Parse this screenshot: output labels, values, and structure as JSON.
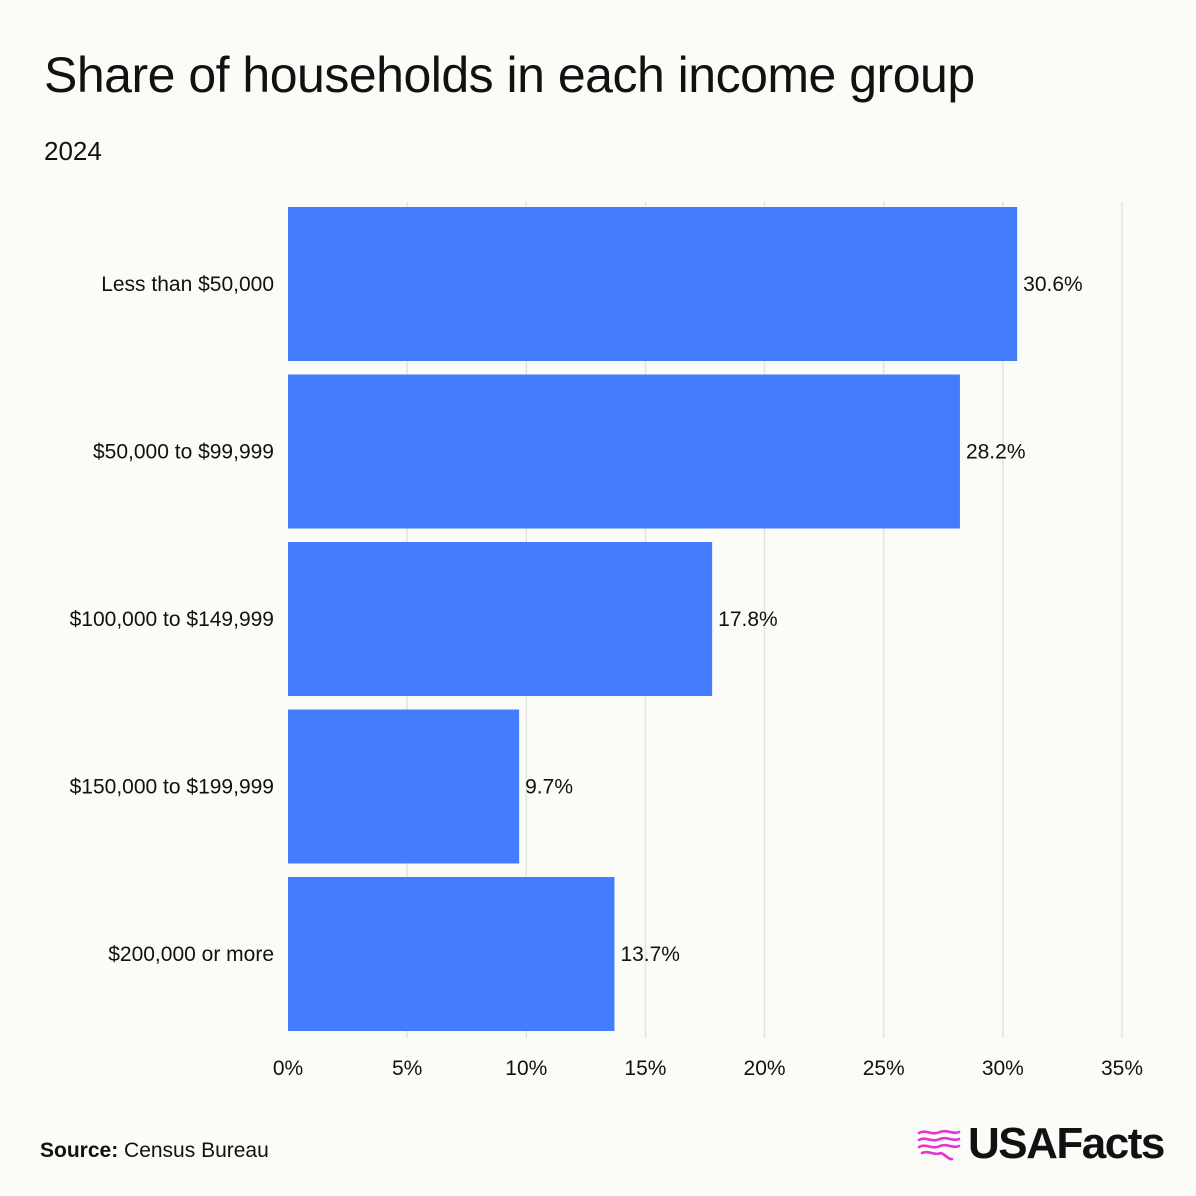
{
  "title": "Share of households in each income group",
  "subtitle": "2024",
  "source_label": "Source:",
  "source_text": "Census Bureau",
  "brand": "USAFacts",
  "brand_icon": "us-map-flag-icon",
  "colors": {
    "bar": "#437dfe",
    "grid": "#e3e3df",
    "brand_accent": "#e535d6",
    "background": "#fbfbf8"
  },
  "chart_data": {
    "type": "bar",
    "orientation": "horizontal",
    "categories": [
      "Less than $50,000",
      "$50,000 to $99,999",
      "$100,000 to $149,999",
      "$150,000 to $199,999",
      "$200,000 or more"
    ],
    "values": [
      30.6,
      28.2,
      17.8,
      9.7,
      13.7
    ],
    "value_labels": [
      "30.6%",
      "28.2%",
      "17.8%",
      "9.7%",
      "13.7%"
    ],
    "xlim": [
      0,
      35
    ],
    "x_ticks": [
      0,
      5,
      10,
      15,
      20,
      25,
      30,
      35
    ],
    "x_tick_labels": [
      "0%",
      "5%",
      "10%",
      "15%",
      "20%",
      "25%",
      "30%",
      "35%"
    ],
    "grid": true,
    "legend": "none"
  }
}
